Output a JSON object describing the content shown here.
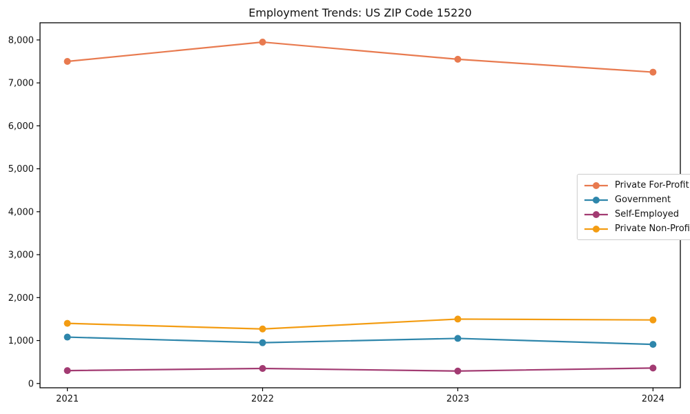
{
  "page": {
    "background": "#ffffff"
  },
  "chart_data": {
    "type": "line",
    "title": "Employment Trends: US ZIP Code 15220",
    "categories": [
      "2021",
      "2022",
      "2023",
      "2024"
    ],
    "series": [
      {
        "name": "Private For-Profit",
        "color": "#E87A4F",
        "values": [
          7500,
          7950,
          7550,
          7250
        ]
      },
      {
        "name": "Government",
        "color": "#2E86AB",
        "values": [
          1080,
          950,
          1050,
          910
        ]
      },
      {
        "name": "Self-Employed",
        "color": "#A23B72",
        "values": [
          300,
          350,
          290,
          360
        ]
      },
      {
        "name": "Private Non-Profit",
        "color": "#F39C12",
        "values": [
          1400,
          1270,
          1500,
          1480
        ]
      }
    ],
    "xlabel": "",
    "ylabel": "",
    "ylim": [
      -100,
      8400
    ],
    "yticks": [
      0,
      1000,
      2000,
      3000,
      4000,
      5000,
      6000,
      7000,
      8000
    ],
    "ytick_labels": [
      "0",
      "1,000",
      "2,000",
      "3,000",
      "4,000",
      "5,000",
      "6,000",
      "7,000",
      "8,000"
    ],
    "grid": false,
    "legend_position": "center-right",
    "marker": "circle",
    "axis_color": "#000000",
    "text_color": "#111111"
  }
}
